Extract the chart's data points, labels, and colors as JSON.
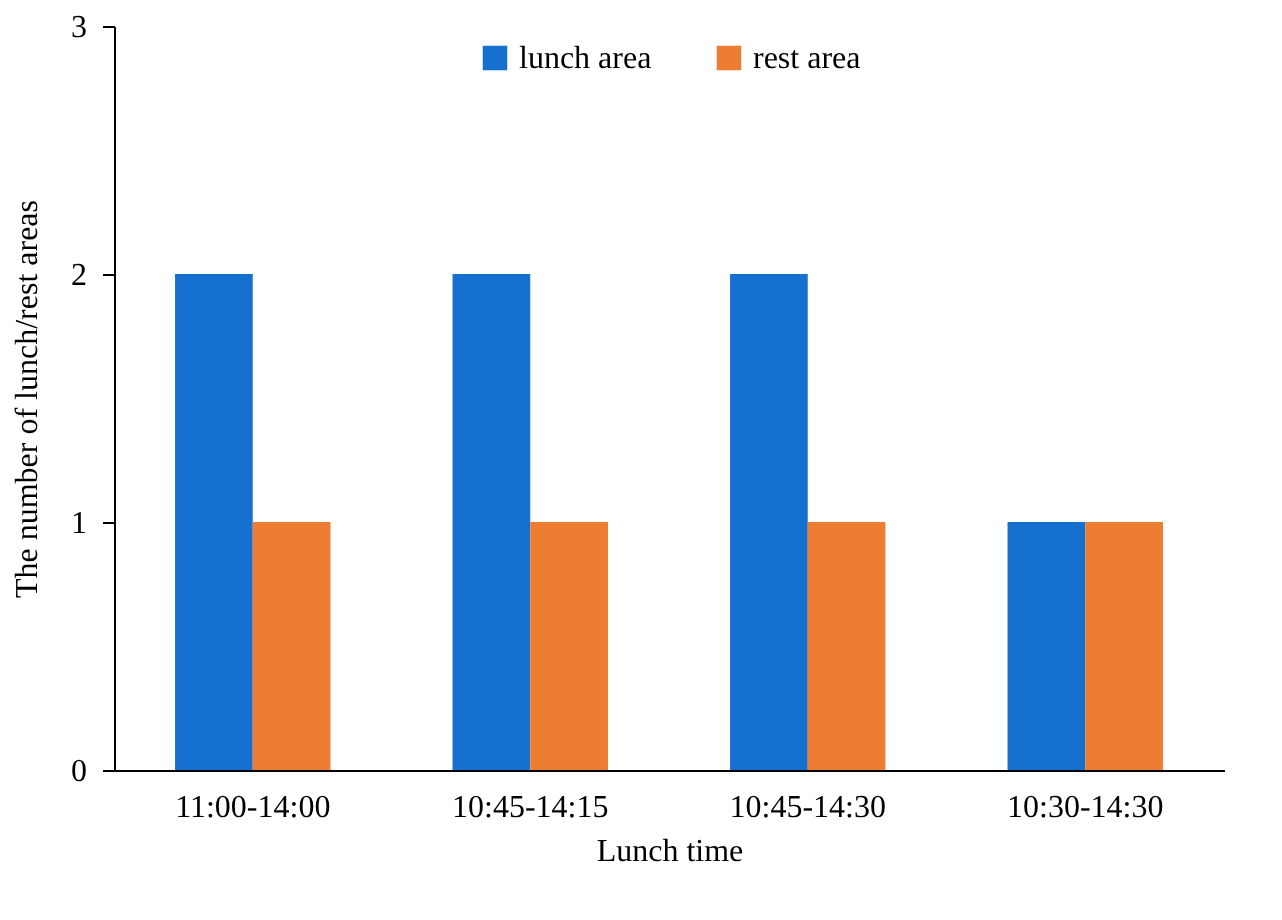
{
  "chart_data": {
    "type": "bar",
    "xlabel": "Lunch time",
    "ylabel": "The number of lunch/rest areas",
    "categories": [
      "11:00-14:00",
      "10:45-14:15",
      "10:45-14:30",
      "10:30-14:30"
    ],
    "series": [
      {
        "name": "lunch area",
        "color": "#1570d0",
        "values": [
          2,
          2,
          2,
          1
        ]
      },
      {
        "name": "rest area",
        "color": "#ed7d31",
        "values": [
          1,
          1,
          1,
          1
        ]
      }
    ],
    "ylim": [
      0,
      3
    ],
    "yticks": [
      0,
      1,
      2,
      3
    ],
    "grid": false,
    "legend": "top"
  }
}
